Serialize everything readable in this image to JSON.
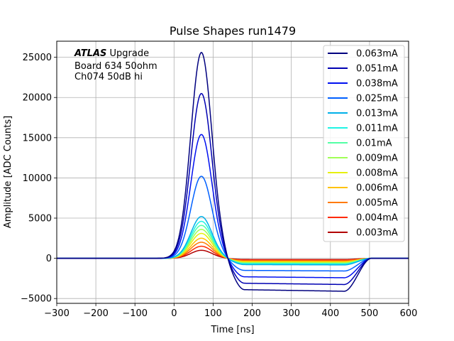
{
  "chart_data": {
    "type": "line",
    "title": "Pulse Shapes run1479",
    "xlabel": "Time [ns]",
    "ylabel": "Amplitude [ADC Counts]",
    "xlim": [
      -300,
      600
    ],
    "ylim": [
      -5600,
      27000
    ],
    "xticks": [
      -300,
      -200,
      -100,
      0,
      100,
      200,
      300,
      400,
      500,
      600
    ],
    "yticks": [
      -5000,
      0,
      5000,
      10000,
      15000,
      20000,
      25000
    ],
    "grid": true,
    "legend_position": "top-right",
    "annotation": {
      "brand": "ATLAS",
      "brand_suffix": " Upgrade",
      "line2": "Board 634 50ohm",
      "line3": "Ch074 50dB hi"
    },
    "series": [
      {
        "name": "0.063mA",
        "peak": 25600,
        "undershoot": 3900,
        "color": "#00007f"
      },
      {
        "name": "0.051mA",
        "peak": 20500,
        "undershoot": 3100,
        "color": "#0000b2"
      },
      {
        "name": "0.038mA",
        "peak": 15400,
        "undershoot": 2300,
        "color": "#0010f0"
      },
      {
        "name": "0.025mA",
        "peak": 10200,
        "undershoot": 1500,
        "color": "#0060ff"
      },
      {
        "name": "0.013mA",
        "peak": 5200,
        "undershoot": 780,
        "color": "#00b0e8"
      },
      {
        "name": "0.011mA",
        "peak": 4600,
        "undershoot": 680,
        "color": "#1ef4e4"
      },
      {
        "name": "0.01mA",
        "peak": 4100,
        "undershoot": 620,
        "color": "#52ffa5"
      },
      {
        "name": "0.009mA",
        "peak": 3600,
        "undershoot": 540,
        "color": "#a0ff56"
      },
      {
        "name": "0.008mA",
        "peak": 3100,
        "undershoot": 470,
        "color": "#e6f00e"
      },
      {
        "name": "0.006mA",
        "peak": 2500,
        "undershoot": 380,
        "color": "#ffc200"
      },
      {
        "name": "0.005mA",
        "peak": 2000,
        "undershoot": 300,
        "color": "#ff7a00"
      },
      {
        "name": "0.004mA",
        "peak": 1500,
        "undershoot": 220,
        "color": "#ff2a00"
      },
      {
        "name": "0.003mA",
        "peak": 1000,
        "undershoot": 150,
        "color": "#b20000"
      }
    ]
  }
}
